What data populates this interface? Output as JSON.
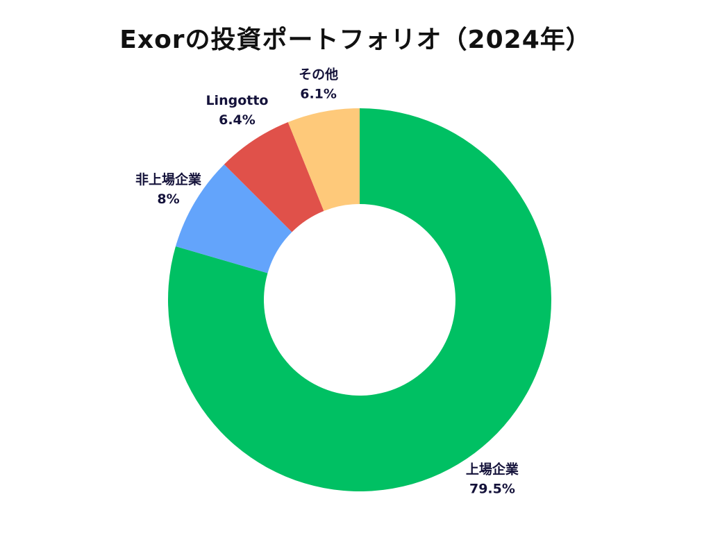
{
  "chart_data": {
    "type": "pie",
    "donut": true,
    "title": "Exorの投資ポートフォリオ（2024年）",
    "start_angle_deg": 0,
    "direction": "clockwise",
    "slices": [
      {
        "label": "上場企業",
        "value": 79.5,
        "display": "79.5%",
        "color": "#00c063"
      },
      {
        "label": "非上場企業",
        "value": 8,
        "display": "8%",
        "color": "#63a4fb"
      },
      {
        "label": "Lingotto",
        "value": 6.4,
        "display": "6.4%",
        "color": "#e0514a"
      },
      {
        "label": "その他",
        "value": 6.1,
        "display": "6.1%",
        "color": "#fec97a"
      }
    ],
    "legend": "none",
    "grid": false
  }
}
